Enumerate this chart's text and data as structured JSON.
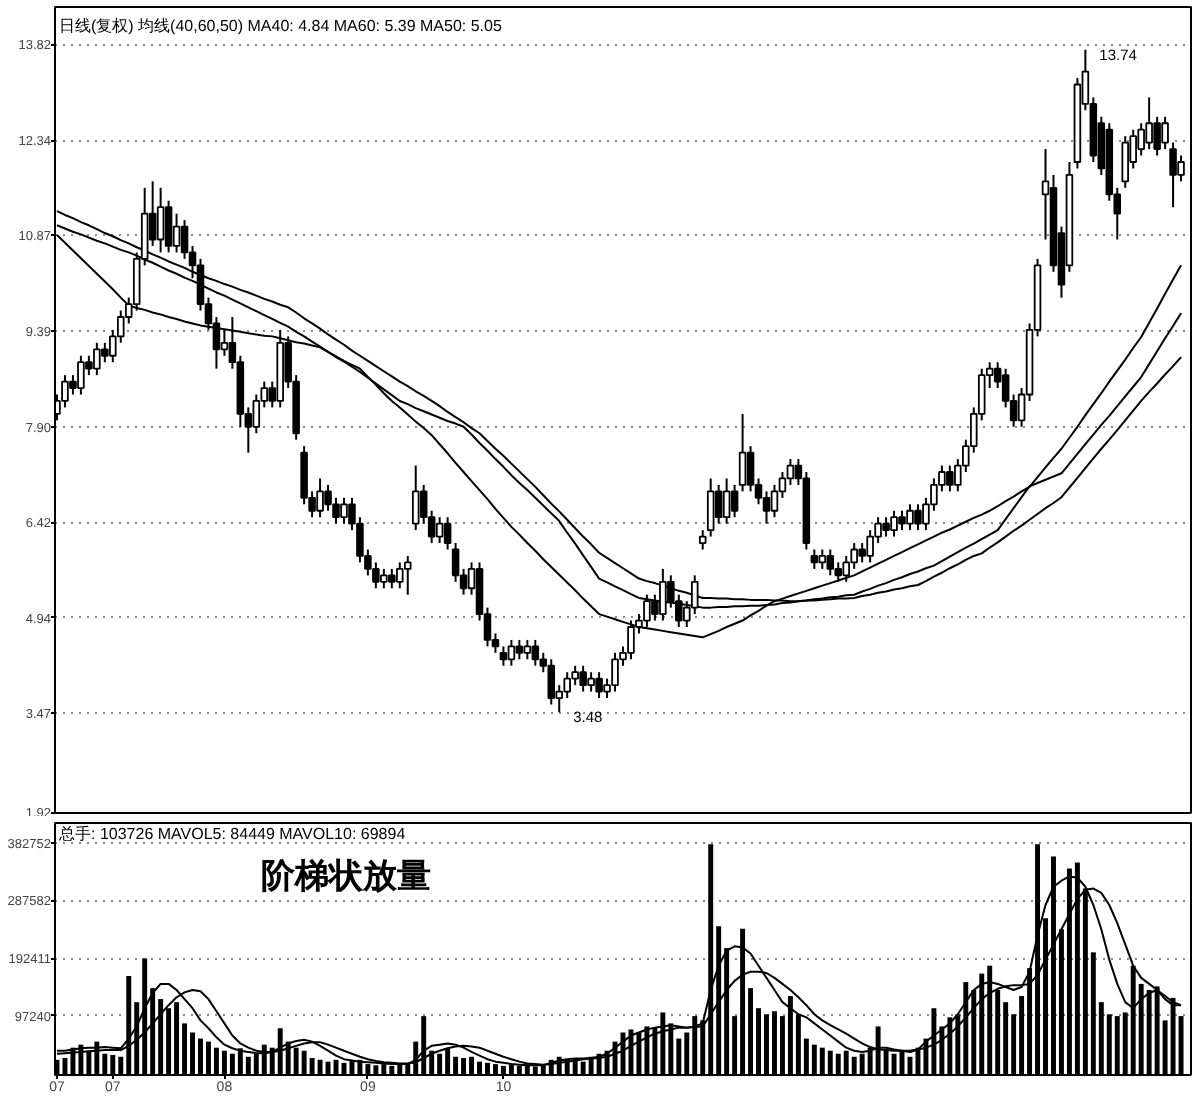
{
  "chart_data": [
    {
      "type": "candlestick",
      "title": "日线(复权) 均线(40,60,50) MA40: 4.84 MA60: 5.39 MA50: 5.05",
      "categories": [
        "07",
        null,
        null,
        null,
        null,
        null,
        null,
        "07",
        null,
        null,
        null,
        null,
        null,
        null,
        null,
        null,
        null,
        null,
        null,
        null,
        null,
        "08",
        null,
        null,
        null,
        null,
        null,
        null,
        null,
        null,
        null,
        null,
        null,
        null,
        null,
        null,
        null,
        null,
        null,
        "09",
        null,
        null,
        null,
        null,
        null,
        null,
        null,
        null,
        null,
        null,
        null,
        null,
        null,
        null,
        null,
        null,
        "10",
        null,
        null,
        null,
        null,
        null,
        null,
        null,
        null,
        null,
        null,
        null,
        null,
        null,
        null,
        null,
        null,
        null,
        null,
        null,
        null,
        null,
        null,
        null,
        null,
        null,
        null,
        null,
        null,
        null,
        null,
        null,
        null,
        null,
        null,
        null,
        null,
        null,
        null,
        null,
        null,
        null,
        null,
        null,
        null,
        null,
        null,
        null,
        null,
        null,
        null,
        null,
        null,
        null,
        null,
        null,
        null,
        null,
        null,
        null,
        null,
        null,
        null,
        null,
        null,
        null,
        null,
        null,
        null,
        null,
        null,
        null,
        null,
        null,
        null,
        null,
        null,
        null,
        null,
        null,
        null,
        null,
        null,
        null,
        null,
        null
      ],
      "ohlc": [
        [
          8.1,
          8.4,
          8.0,
          8.3
        ],
        [
          8.3,
          8.7,
          8.2,
          8.6
        ],
        [
          8.6,
          8.7,
          8.4,
          8.5
        ],
        [
          8.5,
          9.0,
          8.4,
          8.9
        ],
        [
          8.9,
          9.0,
          8.7,
          8.8
        ],
        [
          8.8,
          9.2,
          8.7,
          9.1
        ],
        [
          9.1,
          9.2,
          8.9,
          9.0
        ],
        [
          9.0,
          9.4,
          8.9,
          9.3
        ],
        [
          9.3,
          9.7,
          9.2,
          9.6
        ],
        [
          9.6,
          9.9,
          9.5,
          9.8
        ],
        [
          9.8,
          10.6,
          9.7,
          10.5
        ],
        [
          10.5,
          11.6,
          10.4,
          11.2
        ],
        [
          11.2,
          11.7,
          10.7,
          10.8
        ],
        [
          10.8,
          11.6,
          10.6,
          11.3
        ],
        [
          11.3,
          11.4,
          10.6,
          10.7
        ],
        [
          10.7,
          11.2,
          10.6,
          11.0
        ],
        [
          11.0,
          11.1,
          10.5,
          10.6
        ],
        [
          10.6,
          10.7,
          10.2,
          10.4
        ],
        [
          10.4,
          10.5,
          9.7,
          9.8
        ],
        [
          9.8,
          9.9,
          9.4,
          9.5
        ],
        [
          9.5,
          9.6,
          8.8,
          9.1
        ],
        [
          9.1,
          9.4,
          9.0,
          9.2
        ],
        [
          9.2,
          9.6,
          8.8,
          8.9
        ],
        [
          8.9,
          9.0,
          7.9,
          8.1
        ],
        [
          8.1,
          8.2,
          7.5,
          7.9
        ],
        [
          7.9,
          8.4,
          7.8,
          8.3
        ],
        [
          8.3,
          8.6,
          8.2,
          8.5
        ],
        [
          8.5,
          8.6,
          8.2,
          8.3
        ],
        [
          8.3,
          9.4,
          8.2,
          9.2
        ],
        [
          9.2,
          9.3,
          8.5,
          8.6
        ],
        [
          8.6,
          8.7,
          7.7,
          7.8
        ],
        [
          7.5,
          7.6,
          6.7,
          6.8
        ],
        [
          6.8,
          6.9,
          6.5,
          6.6
        ],
        [
          6.6,
          7.1,
          6.5,
          6.9
        ],
        [
          6.9,
          7.0,
          6.6,
          6.7
        ],
        [
          6.7,
          6.8,
          6.4,
          6.5
        ],
        [
          6.5,
          6.8,
          6.4,
          6.7
        ],
        [
          6.7,
          6.8,
          6.3,
          6.4
        ],
        [
          6.4,
          6.5,
          5.8,
          5.9
        ],
        [
          5.9,
          6.0,
          5.6,
          5.7
        ],
        [
          5.7,
          5.8,
          5.4,
          5.5
        ],
        [
          5.5,
          5.7,
          5.4,
          5.6
        ],
        [
          5.6,
          5.7,
          5.4,
          5.5
        ],
        [
          5.5,
          5.8,
          5.4,
          5.7
        ],
        [
          5.7,
          5.9,
          5.3,
          5.8
        ],
        [
          6.4,
          7.3,
          6.3,
          6.9
        ],
        [
          6.9,
          7.0,
          6.4,
          6.5
        ],
        [
          6.5,
          6.6,
          6.1,
          6.2
        ],
        [
          6.2,
          6.5,
          6.1,
          6.4
        ],
        [
          6.4,
          6.5,
          6.0,
          6.1
        ],
        [
          6.0,
          6.1,
          5.5,
          5.6
        ],
        [
          5.6,
          5.7,
          5.3,
          5.4
        ],
        [
          5.4,
          5.8,
          5.3,
          5.7
        ],
        [
          5.7,
          5.8,
          4.9,
          5.0
        ],
        [
          5.0,
          5.1,
          4.5,
          4.6
        ],
        [
          4.6,
          4.7,
          4.4,
          4.5
        ],
        [
          4.4,
          4.5,
          4.2,
          4.3
        ],
        [
          4.3,
          4.6,
          4.2,
          4.5
        ],
        [
          4.5,
          4.6,
          4.3,
          4.4
        ],
        [
          4.4,
          4.6,
          4.3,
          4.5
        ],
        [
          4.5,
          4.6,
          4.2,
          4.3
        ],
        [
          4.3,
          4.4,
          4.1,
          4.2
        ],
        [
          4.2,
          4.3,
          3.6,
          3.7
        ],
        [
          3.7,
          3.9,
          3.48,
          3.8
        ],
        [
          3.8,
          4.1,
          3.7,
          4.0
        ],
        [
          4.0,
          4.2,
          3.9,
          4.1
        ],
        [
          4.1,
          4.2,
          3.8,
          3.9
        ],
        [
          3.9,
          4.1,
          3.8,
          4.0
        ],
        [
          4.0,
          4.1,
          3.7,
          3.8
        ],
        [
          3.8,
          4.0,
          3.7,
          3.9
        ],
        [
          3.9,
          4.4,
          3.8,
          4.3
        ],
        [
          4.3,
          4.5,
          4.2,
          4.4
        ],
        [
          4.4,
          4.9,
          4.3,
          4.8
        ],
        [
          4.8,
          5.0,
          4.7,
          4.9
        ],
        [
          4.9,
          5.3,
          4.8,
          5.2
        ],
        [
          5.2,
          5.3,
          4.9,
          5.0
        ],
        [
          5.0,
          5.7,
          4.9,
          5.5
        ],
        [
          5.5,
          5.6,
          5.1,
          5.2
        ],
        [
          5.2,
          5.3,
          4.8,
          4.9
        ],
        [
          4.9,
          5.2,
          4.8,
          5.1
        ],
        [
          5.1,
          5.6,
          5.0,
          5.5
        ],
        [
          6.1,
          6.3,
          6.0,
          6.2
        ],
        [
          6.3,
          7.1,
          6.2,
          6.9
        ],
        [
          6.9,
          7.0,
          6.4,
          6.5
        ],
        [
          6.5,
          7.1,
          6.4,
          6.9
        ],
        [
          6.9,
          7.0,
          6.5,
          6.6
        ],
        [
          7.0,
          8.1,
          6.9,
          7.5
        ],
        [
          7.5,
          7.6,
          6.9,
          7.0
        ],
        [
          7.0,
          7.1,
          6.7,
          6.8
        ],
        [
          6.8,
          6.9,
          6.4,
          6.6
        ],
        [
          6.6,
          7.0,
          6.5,
          6.9
        ],
        [
          6.9,
          7.2,
          6.8,
          7.1
        ],
        [
          7.1,
          7.4,
          7.0,
          7.3
        ],
        [
          7.3,
          7.4,
          7.0,
          7.1
        ],
        [
          7.1,
          7.2,
          6.0,
          6.1
        ],
        [
          5.9,
          6.0,
          5.7,
          5.8
        ],
        [
          5.8,
          6.0,
          5.7,
          5.9
        ],
        [
          5.9,
          6.0,
          5.6,
          5.7
        ],
        [
          5.7,
          5.8,
          5.5,
          5.6
        ],
        [
          5.6,
          5.9,
          5.5,
          5.8
        ],
        [
          5.8,
          6.1,
          5.7,
          6.0
        ],
        [
          6.0,
          6.1,
          5.8,
          5.9
        ],
        [
          5.9,
          6.3,
          5.8,
          6.2
        ],
        [
          6.2,
          6.5,
          6.1,
          6.4
        ],
        [
          6.4,
          6.5,
          6.2,
          6.3
        ],
        [
          6.3,
          6.6,
          6.2,
          6.5
        ],
        [
          6.5,
          6.6,
          6.3,
          6.4
        ],
        [
          6.4,
          6.7,
          6.3,
          6.6
        ],
        [
          6.6,
          6.7,
          6.3,
          6.4
        ],
        [
          6.4,
          6.8,
          6.3,
          6.7
        ],
        [
          6.7,
          7.1,
          6.6,
          7.0
        ],
        [
          7.0,
          7.3,
          6.9,
          7.2
        ],
        [
          7.2,
          7.3,
          6.9,
          7.0
        ],
        [
          7.0,
          7.4,
          6.9,
          7.3
        ],
        [
          7.3,
          7.7,
          7.2,
          7.6
        ],
        [
          7.6,
          8.2,
          7.5,
          8.1
        ],
        [
          8.1,
          8.8,
          8.0,
          8.7
        ],
        [
          8.7,
          8.9,
          8.5,
          8.8
        ],
        [
          8.8,
          8.9,
          8.5,
          8.6
        ],
        [
          8.7,
          8.8,
          8.2,
          8.3
        ],
        [
          8.3,
          8.4,
          7.9,
          8.0
        ],
        [
          8.0,
          8.5,
          7.9,
          8.4
        ],
        [
          8.4,
          9.5,
          8.3,
          9.4
        ],
        [
          9.4,
          10.5,
          9.3,
          10.4
        ],
        [
          11.5,
          12.2,
          10.8,
          11.7
        ],
        [
          11.6,
          11.8,
          10.3,
          10.4
        ],
        [
          10.9,
          11.0,
          9.9,
          10.1
        ],
        [
          10.4,
          12.0,
          10.3,
          11.8
        ],
        [
          12.0,
          13.3,
          11.9,
          13.2
        ],
        [
          12.9,
          13.74,
          12.8,
          13.4
        ],
        [
          12.9,
          13.0,
          12.0,
          12.1
        ],
        [
          12.6,
          12.7,
          11.8,
          11.9
        ],
        [
          12.5,
          12.6,
          11.4,
          11.5
        ],
        [
          11.5,
          11.6,
          10.8,
          11.2
        ],
        [
          11.7,
          12.4,
          11.6,
          12.3
        ],
        [
          12.0,
          12.5,
          11.9,
          12.4
        ],
        [
          12.2,
          12.6,
          12.1,
          12.5
        ],
        [
          12.3,
          13.0,
          12.2,
          12.6
        ],
        [
          12.6,
          12.7,
          12.1,
          12.2
        ],
        [
          12.3,
          12.7,
          12.2,
          12.6
        ],
        [
          12.2,
          12.3,
          11.3,
          11.8
        ],
        [
          11.8,
          12.1,
          11.7,
          12.0
        ]
      ],
      "series": [
        {
          "type": "line",
          "color": "#000000",
          "values": [
            10.87,
            10.75,
            10.63,
            10.51,
            10.39,
            10.27,
            10.15,
            10.03,
            9.9,
            9.78,
            9.74,
            9.71,
            9.67,
            9.64,
            9.6,
            9.57,
            9.53,
            9.5,
            9.47,
            9.45,
            9.43,
            9.41,
            9.39,
            9.37,
            9.35,
            9.33,
            9.31,
            9.3,
            9.27,
            9.24,
            9.21,
            9.19,
            9.16,
            9.13,
            9.06,
            8.99,
            8.92,
            8.86,
            8.8,
            8.67,
            8.55,
            8.42,
            8.3,
            8.2,
            8.09,
            7.98,
            7.88,
            7.77,
            7.63,
            7.49,
            7.34,
            7.2,
            7.06,
            6.92,
            6.78,
            6.63,
            6.49,
            6.35,
            6.23,
            6.1,
            5.98,
            5.85,
            5.73,
            5.61,
            5.49,
            5.37,
            5.24,
            5.12,
            5.0,
            4.96,
            4.92,
            4.88,
            4.84,
            4.8,
            4.78,
            4.76,
            4.74,
            4.72,
            4.7,
            4.68,
            4.66,
            4.64,
            4.69,
            4.74,
            4.8,
            4.85,
            4.9,
            4.98,
            5.05,
            5.13,
            5.2,
            5.24,
            5.28,
            5.32,
            5.36,
            5.4,
            5.44,
            5.48,
            5.52,
            5.56,
            5.6,
            5.66,
            5.72,
            5.78,
            5.84,
            5.9,
            5.96,
            6.02,
            6.08,
            6.14,
            6.2,
            6.26,
            6.31,
            6.37,
            6.43,
            6.49,
            6.54,
            6.6,
            6.67,
            6.75,
            6.82,
            6.9,
            6.97,
            7.12,
            7.27,
            7.42,
            7.56,
            7.73,
            7.9,
            8.08,
            8.25,
            8.42,
            8.6,
            8.77,
            8.94,
            9.12,
            9.29,
            9.51,
            9.73,
            9.96,
            10.18,
            10.4
          ]
        },
        {
          "type": "line",
          "color": "#000000",
          "values": [
            11.02,
            10.97,
            10.92,
            10.88,
            10.83,
            10.78,
            10.74,
            10.69,
            10.64,
            10.6,
            10.55,
            10.49,
            10.44,
            10.38,
            10.32,
            10.27,
            10.21,
            10.16,
            10.1,
            10.04,
            9.98,
            9.93,
            9.87,
            9.81,
            9.75,
            9.69,
            9.63,
            9.57,
            9.51,
            9.45,
            9.37,
            9.3,
            9.22,
            9.14,
            9.06,
            8.98,
            8.91,
            8.83,
            8.75,
            8.66,
            8.57,
            8.48,
            8.39,
            8.3,
            8.25,
            8.19,
            8.14,
            8.09,
            8.04,
            7.99,
            7.95,
            7.9,
            7.78,
            7.65,
            7.53,
            7.4,
            7.28,
            7.15,
            7.03,
            6.92,
            6.8,
            6.68,
            6.56,
            6.44,
            6.26,
            6.09,
            5.91,
            5.73,
            5.55,
            5.49,
            5.43,
            5.37,
            5.31,
            5.25,
            5.23,
            5.21,
            5.19,
            5.18,
            5.16,
            5.14,
            5.12,
            5.1,
            5.1,
            5.11,
            5.11,
            5.12,
            5.12,
            5.13,
            5.13,
            5.14,
            5.15,
            5.17,
            5.18,
            5.2,
            5.21,
            5.23,
            5.24,
            5.26,
            5.27,
            5.29,
            5.3,
            5.35,
            5.39,
            5.44,
            5.48,
            5.53,
            5.57,
            5.62,
            5.66,
            5.71,
            5.75,
            5.82,
            5.89,
            5.96,
            6.03,
            6.09,
            6.16,
            6.23,
            6.3,
            6.47,
            6.64,
            6.81,
            6.98,
            7.03,
            7.08,
            7.13,
            7.18,
            7.33,
            7.48,
            7.63,
            7.78,
            7.93,
            8.07,
            8.22,
            8.37,
            8.52,
            8.67,
            8.87,
            9.07,
            9.27,
            9.46,
            9.66
          ]
        },
        {
          "type": "line",
          "color": "#000000",
          "values": [
            11.24,
            11.18,
            11.13,
            11.07,
            11.02,
            10.96,
            10.9,
            10.85,
            10.79,
            10.74,
            10.68,
            10.63,
            10.57,
            10.52,
            10.46,
            10.41,
            10.36,
            10.3,
            10.25,
            10.2,
            10.16,
            10.11,
            10.07,
            10.02,
            9.98,
            9.93,
            9.88,
            9.84,
            9.79,
            9.75,
            9.67,
            9.58,
            9.5,
            9.42,
            9.33,
            9.25,
            9.17,
            9.08,
            9.0,
            8.92,
            8.84,
            8.76,
            8.68,
            8.6,
            8.53,
            8.45,
            8.38,
            8.3,
            8.22,
            8.13,
            8.05,
            7.97,
            7.88,
            7.8,
            7.68,
            7.56,
            7.45,
            7.33,
            7.21,
            7.09,
            6.97,
            6.84,
            6.71,
            6.59,
            6.46,
            6.33,
            6.2,
            6.08,
            5.95,
            5.87,
            5.79,
            5.71,
            5.63,
            5.55,
            5.51,
            5.48,
            5.44,
            5.4,
            5.36,
            5.33,
            5.29,
            5.25,
            5.25,
            5.24,
            5.24,
            5.23,
            5.23,
            5.22,
            5.22,
            5.22,
            5.21,
            5.21,
            5.2,
            5.2,
            5.21,
            5.21,
            5.22,
            5.23,
            5.24,
            5.24,
            5.25,
            5.28,
            5.3,
            5.33,
            5.35,
            5.38,
            5.4,
            5.43,
            5.45,
            5.51,
            5.58,
            5.64,
            5.71,
            5.77,
            5.84,
            5.9,
            5.94,
            6.03,
            6.11,
            6.2,
            6.29,
            6.37,
            6.46,
            6.55,
            6.64,
            6.72,
            6.81,
            6.96,
            7.11,
            7.26,
            7.41,
            7.56,
            7.7,
            7.85,
            8.0,
            8.15,
            8.3,
            8.44,
            8.57,
            8.71,
            8.84,
            8.98
          ]
        }
      ],
      "ylim": [
        1.92,
        14.4
      ],
      "yticks": [
        1.92,
        3.47,
        4.94,
        6.42,
        {
          "value": 7.9,
          "label": "7.90"
        },
        9.39,
        10.87,
        12.34,
        13.82
      ],
      "grid": "y",
      "tick_labels": "y",
      "annotations": [
        "13.74",
        "3.48"
      ]
    },
    {
      "type": "bar",
      "title": "总手: 103726 MAVOL5: 84449 MAVOL10: 69894",
      "categories": [
        "07",
        null,
        null,
        null,
        null,
        null,
        null,
        "07",
        null,
        null,
        null,
        null,
        null,
        null,
        null,
        null,
        null,
        null,
        null,
        null,
        null,
        "08",
        null,
        null,
        null,
        null,
        null,
        null,
        null,
        null,
        null,
        null,
        null,
        null,
        null,
        null,
        null,
        null,
        null,
        "09",
        null,
        null,
        null,
        null,
        null,
        null,
        null,
        null,
        null,
        null,
        null,
        null,
        null,
        null,
        null,
        null,
        "10",
        null,
        null,
        null,
        null,
        null,
        null,
        null,
        null,
        null,
        null,
        null,
        null,
        null,
        null,
        null,
        null,
        null,
        null,
        null,
        null,
        null,
        null,
        null,
        null,
        null,
        null,
        null,
        null,
        null,
        null,
        null,
        null,
        null,
        null,
        null,
        null,
        null,
        null,
        null,
        null,
        null,
        null,
        null,
        null,
        null,
        null,
        null,
        null,
        null,
        null,
        null,
        null,
        null,
        null,
        null,
        null,
        null,
        null,
        null,
        null,
        null,
        null,
        null,
        null,
        null,
        null,
        null,
        null,
        null,
        null,
        null,
        null,
        null,
        null,
        null,
        null,
        null,
        null,
        null,
        null,
        null,
        null,
        null,
        null,
        null
      ],
      "series": [
        {
          "type": "bar",
          "color": "#000000",
          "values": [
            25000,
            28000,
            45000,
            50000,
            40000,
            55000,
            35000,
            33000,
            30000,
            163000,
            120000,
            192000,
            143000,
            125000,
            110000,
            120000,
            85000,
            70000,
            60000,
            55000,
            45000,
            40000,
            35000,
            44000,
            30000,
            35000,
            50000,
            45000,
            77000,
            55000,
            45000,
            40000,
            28000,
            25000,
            22000,
            25000,
            20000,
            23000,
            25000,
            18000,
            16000,
            18000,
            15000,
            17000,
            20000,
            55000,
            97000,
            40000,
            35000,
            44000,
            30000,
            28000,
            30000,
            22000,
            20000,
            18000,
            15000,
            17000,
            15000,
            16000,
            14000,
            15000,
            25000,
            30000,
            25000,
            28000,
            22000,
            30000,
            35000,
            40000,
            55000,
            70000,
            75000,
            70000,
            80000,
            78000,
            103000,
            85000,
            60000,
            70000,
            97000,
            90000,
            380000,
            245000,
            209000,
            97000,
            241000,
            143000,
            110000,
            100000,
            105000,
            97000,
            130000,
            100000,
            60000,
            50000,
            45000,
            40000,
            35000,
            40000,
            30000,
            35000,
            45000,
            80000,
            40000,
            35000,
            40000,
            30000,
            45000,
            60000,
            110000,
            80000,
            95000,
            100000,
            153000,
            140000,
            167000,
            180000,
            140000,
            120000,
            100000,
            130000,
            176000,
            380000,
            258000,
            360000,
            240000,
            340000,
            350000,
            307000,
            202000,
            120000,
            100000,
            97000,
            103000,
            180000,
            150000,
            140000,
            146000,
            90000,
            127000,
            97000
          ]
        },
        {
          "type": "line",
          "color": "#000000",
          "values": [
            40000,
            40000,
            42000,
            44000,
            45000,
            45000,
            46000,
            45000,
            44000,
            60000,
            80000,
            110000,
            135000,
            150000,
            150000,
            140000,
            125000,
            110000,
            90000,
            77000,
            62000,
            50000,
            44000,
            40000,
            38000,
            36000,
            36000,
            38000,
            45000,
            52000,
            56000,
            58000,
            55000,
            48000,
            40000,
            32000,
            26000,
            24000,
            22000,
            21000,
            20000,
            19000,
            18000,
            18000,
            18000,
            25000,
            40000,
            48000,
            50000,
            52000,
            50000,
            45000,
            38000,
            32000,
            26000,
            22000,
            20000,
            18000,
            17000,
            16000,
            16000,
            16000,
            20000,
            24000,
            26000,
            27000,
            27000,
            28000,
            30000,
            35000,
            45000,
            55000,
            65000,
            70000,
            75000,
            78000,
            80000,
            82000,
            80000,
            78000,
            80000,
            85000,
            140000,
            180000,
            205000,
            212000,
            210000,
            200000,
            180000,
            160000,
            140000,
            120000,
            110000,
            100000,
            95000,
            85000,
            75000,
            65000,
            55000,
            45000,
            40000,
            38000,
            40000,
            45000,
            45000,
            42000,
            40000,
            38000,
            42000,
            55000,
            65000,
            75000,
            85000,
            100000,
            120000,
            140000,
            150000,
            153000,
            150000,
            145000,
            140000,
            145000,
            170000,
            230000,
            280000,
            310000,
            320000,
            327000,
            325000,
            310000,
            280000,
            240000,
            190000,
            150000,
            120000,
            110000,
            125000,
            135000,
            140000,
            125000,
            115000,
            115000
          ]
        },
        {
          "type": "line",
          "color": "#000000",
          "values": [
            35000,
            36000,
            37000,
            38000,
            39000,
            40000,
            41000,
            41000,
            41000,
            48000,
            58000,
            70000,
            85000,
            100000,
            115000,
            128000,
            136000,
            140000,
            138000,
            125000,
            105000,
            85000,
            65000,
            52000,
            45000,
            40000,
            38000,
            38000,
            40000,
            44000,
            48000,
            52000,
            54000,
            54000,
            50000,
            45000,
            40000,
            35000,
            30000,
            26000,
            23000,
            21000,
            20000,
            19000,
            19000,
            21000,
            28000,
            35000,
            40000,
            44000,
            47000,
            48000,
            47000,
            45000,
            40000,
            35000,
            30000,
            26000,
            22000,
            19000,
            18000,
            17000,
            18000,
            20000,
            22000,
            24000,
            26000,
            27000,
            28000,
            30000,
            35000,
            40000,
            48000,
            55000,
            62000,
            68000,
            72000,
            75000,
            78000,
            78000,
            79000,
            80000,
            100000,
            120000,
            140000,
            155000,
            165000,
            170000,
            170000,
            168000,
            160000,
            150000,
            140000,
            128000,
            115000,
            100000,
            90000,
            82000,
            75000,
            68000,
            60000,
            52000,
            46000,
            42000,
            41000,
            40000,
            40000,
            40000,
            42000,
            45000,
            50000,
            58000,
            68000,
            80000,
            95000,
            110000,
            125000,
            135000,
            142000,
            146000,
            148000,
            148000,
            150000,
            165000,
            190000,
            215000,
            240000,
            265000,
            290000,
            305000,
            307000,
            300000,
            280000,
            250000,
            215000,
            180000,
            160000,
            150000,
            140000,
            130000,
            120000,
            115000
          ]
        }
      ],
      "ylim": [
        0,
        415000
      ],
      "yticks": [
        97240,
        192411,
        287582,
        382752
      ],
      "grid": "y",
      "annotations": [
        "阶梯状放量"
      ]
    }
  ]
}
